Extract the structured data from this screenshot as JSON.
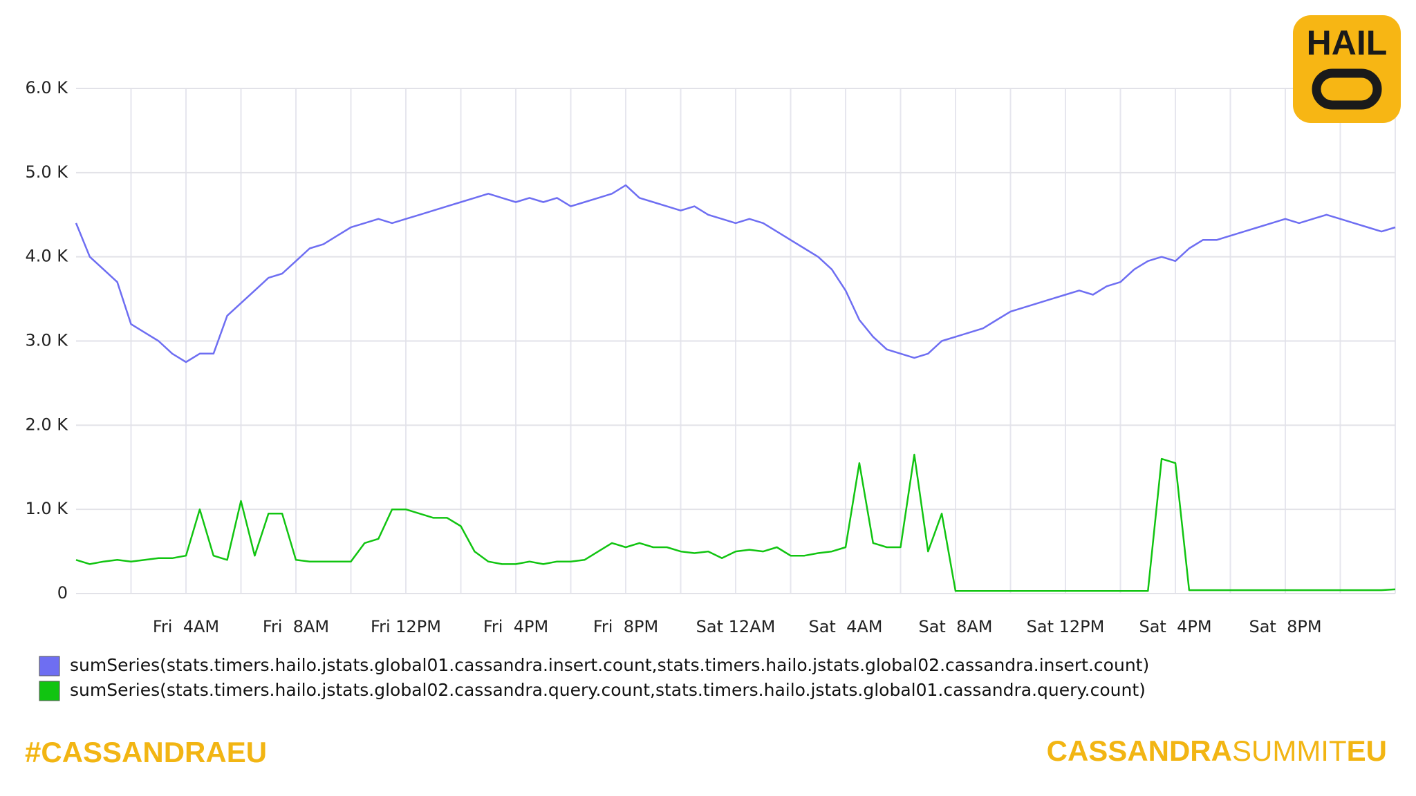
{
  "chart_data": {
    "type": "line",
    "categories": [
      null,
      null,
      null,
      null,
      null,
      null,
      null,
      null,
      "Fri  4AM",
      null,
      null,
      null,
      null,
      null,
      null,
      null,
      "Fri  8AM",
      null,
      null,
      null,
      null,
      null,
      null,
      null,
      "Fri 12PM",
      null,
      null,
      null,
      null,
      null,
      null,
      null,
      "Fri  4PM",
      null,
      null,
      null,
      null,
      null,
      null,
      null,
      "Fri  8PM",
      null,
      null,
      null,
      null,
      null,
      null,
      null,
      "Sat 12AM",
      null,
      null,
      null,
      null,
      null,
      null,
      null,
      "Sat  4AM",
      null,
      null,
      null,
      null,
      null,
      null,
      null,
      "Sat  8AM",
      null,
      null,
      null,
      null,
      null,
      null,
      null,
      "Sat 12PM",
      null,
      null,
      null,
      null,
      null,
      null,
      null,
      "Sat  4PM",
      null,
      null,
      null,
      null,
      null,
      null,
      null,
      "Sat  8PM",
      null,
      null,
      null,
      null,
      null,
      null,
      null,
      null
    ],
    "series": [
      {
        "name": "sumSeries(stats.timers.hailo.jstats.global01.cassandra.insert.count,stats.timers.hailo.jstats.global02.cassandra.insert.count)",
        "color": "#6e6ef2",
        "values": [
          4400,
          4000,
          3850,
          3700,
          3200,
          3100,
          3000,
          2850,
          2750,
          2850,
          2850,
          3300,
          3450,
          3600,
          3750,
          3800,
          3950,
          4100,
          4150,
          4250,
          4350,
          4400,
          4450,
          4400,
          4450,
          4500,
          4550,
          4600,
          4650,
          4700,
          4750,
          4700,
          4650,
          4700,
          4650,
          4700,
          4600,
          4650,
          4700,
          4750,
          4850,
          4700,
          4650,
          4600,
          4550,
          4600,
          4500,
          4450,
          4400,
          4450,
          4400,
          4300,
          4200,
          4100,
          4000,
          3850,
          3600,
          3250,
          3050,
          2900,
          2850,
          2800,
          2850,
          3000,
          3050,
          3100,
          3150,
          3250,
          3350,
          3400,
          3450,
          3500,
          3550,
          3600,
          3550,
          3650,
          3700,
          3850,
          3950,
          4000,
          3950,
          4100,
          4200,
          4200,
          4250,
          4300,
          4350,
          4400,
          4450,
          4400,
          4450,
          4500,
          4450,
          4400,
          4350,
          4300,
          4350
        ]
      },
      {
        "name": "sumSeries(stats.timers.hailo.jstats.global02.cassandra.query.count,stats.timers.hailo.jstats.global01.cassandra.query.count)",
        "color": "#11c411",
        "values": [
          400,
          350,
          380,
          400,
          380,
          400,
          420,
          420,
          450,
          1000,
          450,
          400,
          1100,
          450,
          950,
          950,
          400,
          380,
          380,
          380,
          380,
          600,
          650,
          1000,
          1000,
          950,
          900,
          900,
          800,
          500,
          380,
          350,
          350,
          380,
          350,
          380,
          380,
          400,
          500,
          600,
          550,
          600,
          550,
          550,
          500,
          480,
          500,
          420,
          500,
          520,
          500,
          550,
          450,
          450,
          480,
          500,
          550,
          1550,
          600,
          550,
          550,
          1650,
          500,
          950,
          30,
          30,
          30,
          30,
          30,
          30,
          30,
          30,
          30,
          30,
          30,
          30,
          30,
          30,
          30,
          1600,
          1550,
          40,
          40,
          40,
          40,
          40,
          40,
          40,
          40,
          40,
          40,
          40,
          40,
          40,
          40,
          40,
          50
        ]
      }
    ],
    "ylim": [
      0,
      6000
    ],
    "yticks": [
      0,
      {
        "value": 1000,
        "label": "1.0 K"
      },
      {
        "value": 2000,
        "label": "2.0 K"
      },
      {
        "value": 3000,
        "label": "3.0 K"
      },
      {
        "value": 4000,
        "label": "4.0 K"
      },
      {
        "value": 5000,
        "label": "5.0 K"
      },
      {
        "value": 6000,
        "label": "6.0 K"
      }
    ],
    "grid": true
  },
  "slide": {
    "hashtag": "#CASSANDRAEU",
    "brand": [
      "CASSANDRA",
      "SUMMIT",
      "EU"
    ],
    "logo": "HAIL"
  }
}
